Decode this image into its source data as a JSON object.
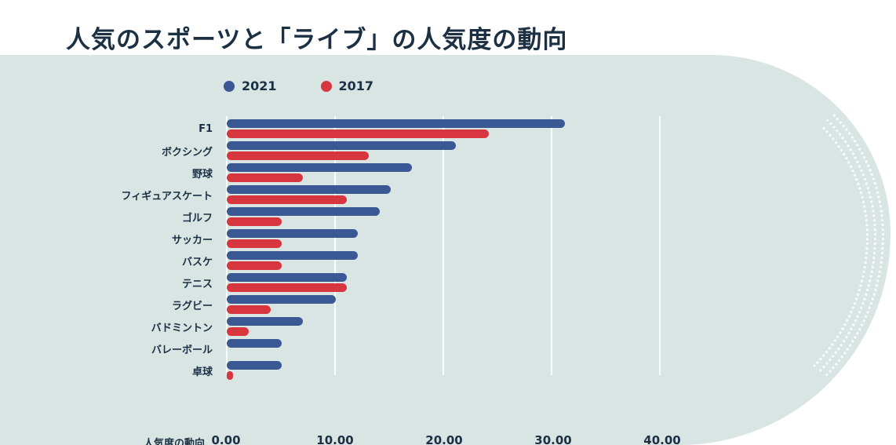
{
  "title": "人気のスポーツと「ライブ」の人気度の動向",
  "colors": {
    "panel_bg": "#d8e5e2",
    "blue_2021": "#3a5894",
    "red_2017": "#d7363f",
    "text": "#1b2f45",
    "gridline": "#ffffff",
    "page_bg": "#ffffff"
  },
  "legend": [
    {
      "label": "2021",
      "color": "#3a5894"
    },
    {
      "label": "2017",
      "color": "#d7363f"
    }
  ],
  "chart_data": {
    "type": "bar",
    "orientation": "horizontal",
    "title": "人気のスポーツと「ライブ」の人気度の動向",
    "xlabel": "人気度の動向",
    "ylabel": "",
    "xlim": [
      0,
      40
    ],
    "x_ticks": [
      "0.00",
      "10.00",
      "20.00",
      "30.00",
      "40.00"
    ],
    "x_tick_values": [
      0,
      10,
      20,
      30,
      40
    ],
    "grid": true,
    "legend_position": "top",
    "categories": [
      "F1",
      "ボクシング",
      "野球",
      "フィギュアスケート",
      "ゴルフ",
      "サッカー",
      "バスケ",
      "テニス",
      "ラグビー",
      "バドミントン",
      "バレーボール",
      "卓球"
    ],
    "series": [
      {
        "name": "2021",
        "color": "#3a5894",
        "values": [
          31,
          21,
          17,
          15,
          14,
          12,
          12,
          11,
          10,
          7,
          5,
          5
        ]
      },
      {
        "name": "2017",
        "color": "#d7363f",
        "values": [
          24,
          13,
          7,
          11,
          5,
          5,
          5,
          11,
          4,
          2,
          0,
          0.5
        ]
      }
    ]
  }
}
